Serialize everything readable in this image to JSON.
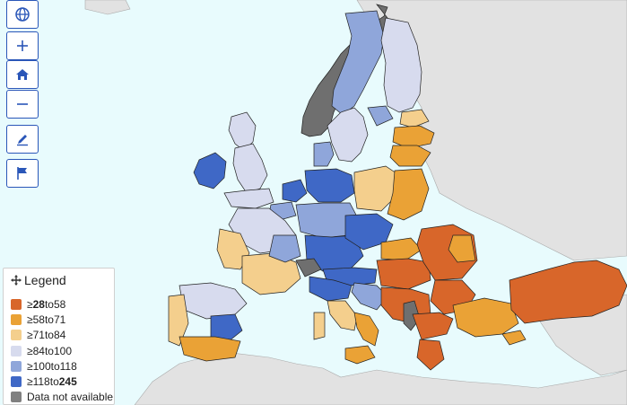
{
  "legend": {
    "title": "Legend",
    "items": [
      {
        "pre": "≥ ",
        "low": "28",
        "mid": " to ",
        "high": "58",
        "low_bold": true,
        "high_bold": false,
        "color": "#d8662a"
      },
      {
        "pre": "≥ ",
        "low": "58",
        "mid": " to ",
        "high": "71",
        "low_bold": false,
        "high_bold": false,
        "color": "#eaa236"
      },
      {
        "pre": "≥ ",
        "low": "71",
        "mid": " to ",
        "high": "84",
        "low_bold": false,
        "high_bold": false,
        "color": "#f4cf8d"
      },
      {
        "pre": "≥ ",
        "low": "84",
        "mid": " to ",
        "high": "100",
        "low_bold": false,
        "high_bold": false,
        "color": "#d7dbee"
      },
      {
        "pre": "≥ ",
        "low": "100",
        "mid": " to ",
        "high": "118",
        "low_bold": false,
        "high_bold": false,
        "color": "#8fa6da"
      },
      {
        "pre": "≥ ",
        "low": "118",
        "mid": " to ",
        "high": "245",
        "low_bold": false,
        "high_bold": true,
        "color": "#3f68c6"
      },
      {
        "pre": "",
        "low": "Data not available",
        "mid": "",
        "high": "",
        "low_bold": false,
        "high_bold": false,
        "color": "#808080"
      }
    ]
  },
  "toolbar": {
    "buttons": [
      {
        "name": "globe-button",
        "icon": "globe-icon"
      },
      {
        "name": "zoom-in-button",
        "icon": "plus-icon"
      },
      {
        "name": "home-button",
        "icon": "home-icon"
      },
      {
        "name": "zoom-out-button",
        "icon": "minus-icon"
      },
      {
        "name": "draw-button",
        "icon": "pencil-icon"
      },
      {
        "name": "flag-button",
        "icon": "flag-icon"
      }
    ]
  },
  "colors": {
    "sea": "#e8fbfd",
    "non_eu_land": "#e2e2e2",
    "border": "#222222",
    "button_border": "#2a56b8"
  }
}
